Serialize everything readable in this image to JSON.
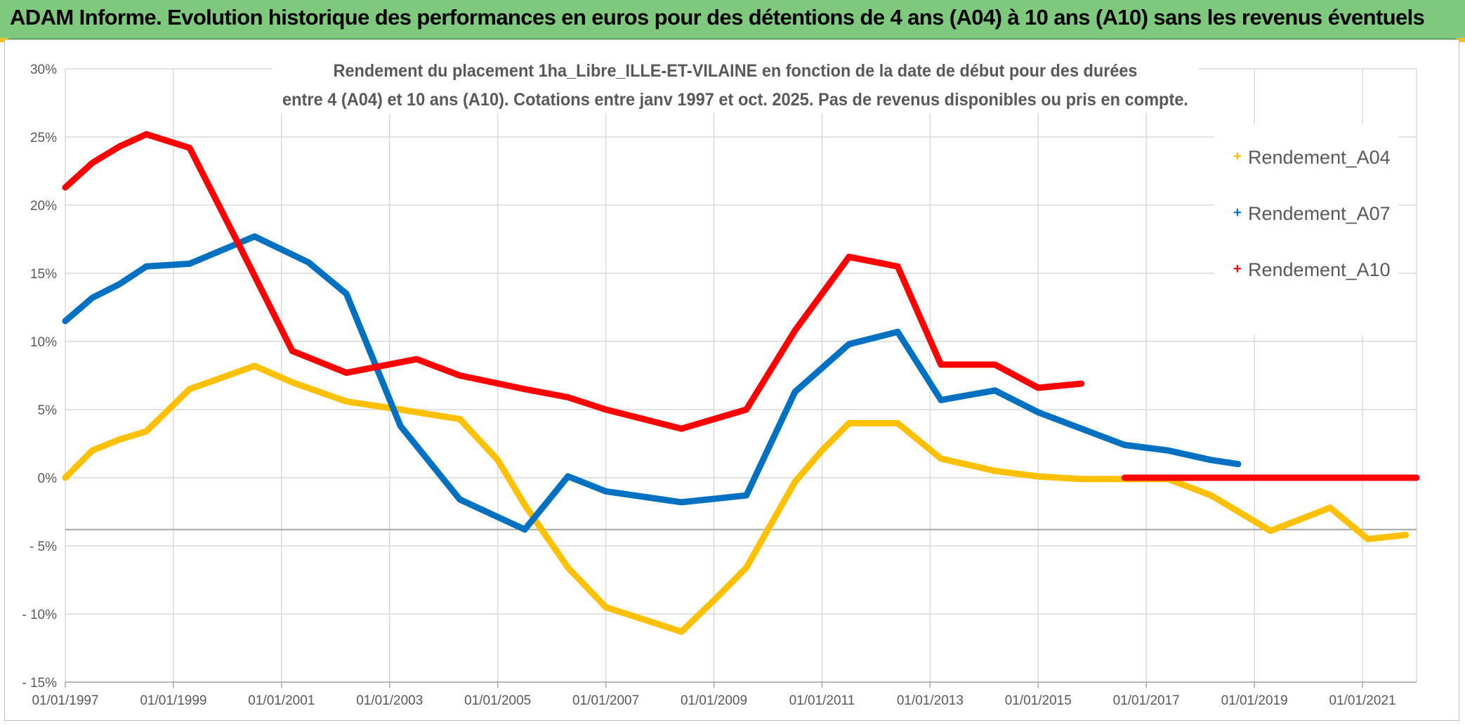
{
  "banner": {
    "title": "ADAM Informe. Evolution historique des performances en euros pour des détentions de 4 ans (A04) à 10 ans (A10) sans les revenus éventuels"
  },
  "colors": {
    "banner_bg": "#7fc97f",
    "A04": "#ffc000",
    "A07": "#0070c0",
    "A10": "#ff0000",
    "grid": "#d9d9d9",
    "axis_text": "#595959"
  },
  "chart_data": {
    "type": "line",
    "title": "Rendement du placement 1ha_Libre_ILLE-ET-VILAINE en fonction de la date de début pour des durées",
    "subtitle": "entre 4 (A04) et 10 ans (A10). Cotations entre janv 1997 et oct. 2025. Pas de revenus disponibles ou pris en compte.",
    "xlabel": "",
    "ylabel": "",
    "x_range": [
      1997.0,
      2022.0
    ],
    "ylim": [
      -15,
      30
    ],
    "grid": true,
    "legend_position": "top-right",
    "x_tick_labels": [
      "01/01/1997",
      "01/01/1999",
      "01/01/2001",
      "01/01/2003",
      "01/01/2005",
      "01/01/2007",
      "01/01/2009",
      "01/01/2011",
      "01/01/2013",
      "01/01/2015",
      "01/01/2017",
      "01/01/2019",
      "01/01/2021"
    ],
    "y_tick_labels": [
      "30%",
      "25%",
      "20%",
      "15%",
      "10%",
      "5%",
      "0%",
      "- 5%",
      "- 10%",
      "- 15%"
    ],
    "series": [
      {
        "name": "Rendement_A04",
        "color": "#ffc000",
        "x": [
          1997.0,
          1997.5,
          1998.0,
          1998.5,
          1999.3,
          2000.5,
          2001.2,
          2002.2,
          2003.2,
          2004.3,
          2005.0,
          2005.5,
          2006.3,
          2007.0,
          2008.4,
          2009.0,
          2009.6,
          2010.5,
          2011.0,
          2011.5,
          2012.4,
          2013.2,
          2014.2,
          2015.0,
          2015.8,
          2016.6,
          2017.4,
          2018.2,
          2019.3,
          2020.4,
          2021.1,
          2021.8
        ],
        "values": [
          0,
          2,
          2.8,
          3.4,
          6.5,
          8.2,
          7.0,
          5.6,
          5.0,
          4.3,
          1.3,
          -2.0,
          -6.6,
          -9.5,
          -11.3,
          -9.0,
          -6.6,
          -0.3,
          2.0,
          4.0,
          4.0,
          1.4,
          0.5,
          0.1,
          -0.1,
          -0.1,
          -0.1,
          -1.3,
          -3.9,
          -2.2,
          -4.5,
          -4.2
        ]
      },
      {
        "name": "Rendement_A07",
        "color": "#0070c0",
        "x": [
          1997.0,
          1997.5,
          1998.0,
          1998.5,
          1999.3,
          2000.5,
          2001.5,
          2002.2,
          2003.2,
          2004.3,
          2005.5,
          2006.3,
          2007.0,
          2008.4,
          2009.6,
          2010.5,
          2011.5,
          2012.4,
          2013.2,
          2014.2,
          2015.0,
          2015.8,
          2016.6,
          2017.4,
          2018.2,
          2018.7
        ],
        "values": [
          11.5,
          13.2,
          14.2,
          15.5,
          15.7,
          17.7,
          15.8,
          13.5,
          3.8,
          -1.6,
          -3.8,
          0.1,
          -1.0,
          -1.8,
          -1.3,
          6.3,
          9.8,
          10.7,
          5.7,
          6.4,
          4.8,
          3.6,
          2.4,
          2.0,
          1.3,
          1.0
        ]
      },
      {
        "name": "Rendement_A10",
        "color": "#ff0000",
        "x": [
          1997.0,
          1997.5,
          1998.0,
          1998.5,
          1999.3,
          2000.3,
          2001.2,
          2002.2,
          2003.5,
          2004.3,
          2005.5,
          2006.3,
          2007.0,
          2008.4,
          2009.6,
          2010.5,
          2011.5,
          2012.4,
          2013.2,
          2014.2,
          2015.0,
          2015.8,
          2016.6,
          2017.4,
          2018.2,
          2019.3,
          2020.4,
          2021.1,
          2022.0
        ],
        "values": [
          21.3,
          23.1,
          24.3,
          25.2,
          24.2,
          16.4,
          9.3,
          7.7,
          8.7,
          7.5,
          6.5,
          5.9,
          5.0,
          3.6,
          5.0,
          10.8,
          16.2,
          15.5,
          8.3,
          8.3,
          6.6,
          6.9,
          0,
          0,
          0,
          0,
          0,
          0,
          0
        ]
      }
    ],
    "breaks": {
      "Rendement_A10": 21
    }
  }
}
